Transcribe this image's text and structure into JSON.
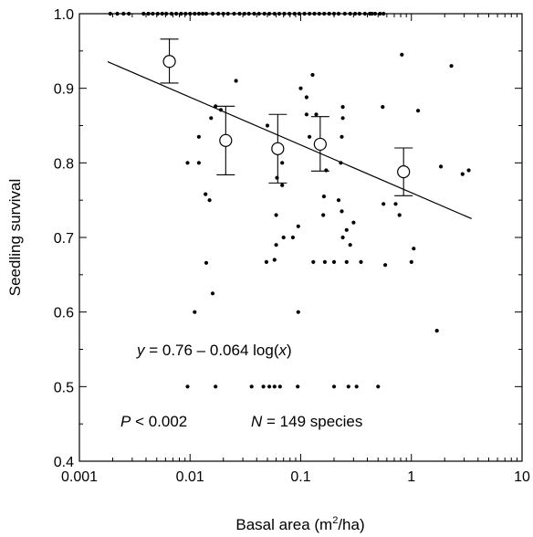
{
  "chart_data": {
    "type": "scatter",
    "xlabel": "Basal area (m",
    "xlabel_sup": "2",
    "xlabel_end": "/ha)",
    "ylabel": "Seedling survival",
    "xscale": "log",
    "xlim": [
      0.001,
      10
    ],
    "ylim": [
      0.4,
      1.0
    ],
    "x_tick_labels": [
      "0.001",
      "0.01",
      "0.1",
      "1",
      "10"
    ],
    "x_ticks": [
      0.001,
      0.01,
      0.1,
      1,
      10
    ],
    "y_tick_labels": [
      "0.4",
      "0.5",
      "0.6",
      "0.7",
      "0.8",
      "0.9",
      "1.0"
    ],
    "y_ticks": [
      0.4,
      0.5,
      0.6,
      0.7,
      0.8,
      0.9,
      1.0
    ],
    "grid": false,
    "equation": {
      "y": "y",
      "eq": " = 0.76 – 0.064 log(",
      "x": "x",
      "close": ")"
    },
    "stats": {
      "p_label": "P",
      "p_value": " < 0.002",
      "n_label": "N",
      "n_value": " = 149 species"
    },
    "regression": {
      "intercept": 0.76,
      "slope": -0.064,
      "x_range": [
        0.0018,
        3.5
      ]
    },
    "binned_means": [
      {
        "x": 0.0065,
        "y": 0.936,
        "low": 0.907,
        "high": 0.966
      },
      {
        "x": 0.021,
        "y": 0.83,
        "low": 0.784,
        "high": 0.876
      },
      {
        "x": 0.062,
        "y": 0.819,
        "low": 0.773,
        "high": 0.865
      },
      {
        "x": 0.15,
        "y": 0.825,
        "low": 0.789,
        "high": 0.862
      },
      {
        "x": 0.85,
        "y": 0.788,
        "low": 0.756,
        "high": 0.82
      }
    ],
    "points": [
      [
        0.0019,
        1.0
      ],
      [
        0.0022,
        1.0
      ],
      [
        0.0025,
        1.0
      ],
      [
        0.0028,
        1.0
      ],
      [
        0.0038,
        1.0
      ],
      [
        0.0042,
        1.0
      ],
      [
        0.0046,
        1.0
      ],
      [
        0.0051,
        1.0
      ],
      [
        0.0056,
        1.0
      ],
      [
        0.0061,
        1.0
      ],
      [
        0.0068,
        1.0
      ],
      [
        0.0075,
        1.0
      ],
      [
        0.0083,
        1.0
      ],
      [
        0.0091,
        1.0
      ],
      [
        0.01,
        1.0
      ],
      [
        0.011,
        1.0
      ],
      [
        0.012,
        1.0
      ],
      [
        0.013,
        1.0
      ],
      [
        0.014,
        1.0
      ],
      [
        0.016,
        1.0
      ],
      [
        0.018,
        1.0
      ],
      [
        0.02,
        1.0
      ],
      [
        0.022,
        1.0
      ],
      [
        0.025,
        1.0
      ],
      [
        0.028,
        1.0
      ],
      [
        0.031,
        1.0
      ],
      [
        0.034,
        1.0
      ],
      [
        0.038,
        1.0
      ],
      [
        0.042,
        1.0
      ],
      [
        0.047,
        1.0
      ],
      [
        0.052,
        1.0
      ],
      [
        0.058,
        1.0
      ],
      [
        0.064,
        1.0
      ],
      [
        0.071,
        1.0
      ],
      [
        0.079,
        1.0
      ],
      [
        0.088,
        1.0
      ],
      [
        0.097,
        1.0
      ],
      [
        0.108,
        1.0
      ],
      [
        0.12,
        1.0
      ],
      [
        0.133,
        1.0
      ],
      [
        0.147,
        1.0
      ],
      [
        0.163,
        1.0
      ],
      [
        0.181,
        1.0
      ],
      [
        0.2,
        1.0
      ],
      [
        0.22,
        1.0
      ],
      [
        0.25,
        1.0
      ],
      [
        0.28,
        1.0
      ],
      [
        0.31,
        1.0
      ],
      [
        0.34,
        1.0
      ],
      [
        0.38,
        1.0
      ],
      [
        0.42,
        1.0
      ],
      [
        0.44,
        1.0
      ],
      [
        0.47,
        1.0
      ],
      [
        0.52,
        1.0
      ],
      [
        0.56,
        1.0
      ],
      [
        0.026,
        0.91
      ],
      [
        0.017,
        0.876
      ],
      [
        0.019,
        0.871
      ],
      [
        0.0155,
        0.86
      ],
      [
        0.012,
        0.835
      ],
      [
        0.012,
        0.8
      ],
      [
        0.0095,
        0.8
      ],
      [
        0.0138,
        0.758
      ],
      [
        0.015,
        0.75
      ],
      [
        0.014,
        0.666
      ],
      [
        0.016,
        0.625
      ],
      [
        0.011,
        0.6
      ],
      [
        0.0095,
        0.5
      ],
      [
        0.017,
        0.5
      ],
      [
        0.036,
        0.5
      ],
      [
        0.046,
        0.5
      ],
      [
        0.052,
        0.5
      ],
      [
        0.058,
        0.5
      ],
      [
        0.065,
        0.5
      ],
      [
        0.094,
        0.5
      ],
      [
        0.2,
        0.5
      ],
      [
        0.27,
        0.5
      ],
      [
        0.32,
        0.5
      ],
      [
        0.5,
        0.5
      ],
      [
        0.05,
        0.85
      ],
      [
        0.068,
        0.8
      ],
      [
        0.061,
        0.78
      ],
      [
        0.068,
        0.77
      ],
      [
        0.06,
        0.73
      ],
      [
        0.06,
        0.69
      ],
      [
        0.058,
        0.67
      ],
      [
        0.049,
        0.667
      ],
      [
        0.07,
        0.7
      ],
      [
        0.085,
        0.7
      ],
      [
        0.095,
        0.715
      ],
      [
        0.095,
        0.6
      ],
      [
        0.1,
        0.9
      ],
      [
        0.128,
        0.918
      ],
      [
        0.113,
        0.888
      ],
      [
        0.113,
        0.865
      ],
      [
        0.12,
        0.835
      ],
      [
        0.17,
        0.79
      ],
      [
        0.162,
        0.755
      ],
      [
        0.16,
        0.73
      ],
      [
        0.13,
        0.667
      ],
      [
        0.2,
        0.667
      ],
      [
        0.165,
        0.667
      ],
      [
        0.138,
        0.865
      ],
      [
        0.24,
        0.875
      ],
      [
        0.24,
        0.86
      ],
      [
        0.235,
        0.835
      ],
      [
        0.23,
        0.8
      ],
      [
        0.22,
        0.75
      ],
      [
        0.235,
        0.735
      ],
      [
        0.26,
        0.71
      ],
      [
        0.24,
        0.7
      ],
      [
        0.3,
        0.72
      ],
      [
        0.28,
        0.69
      ],
      [
        0.26,
        0.667
      ],
      [
        0.35,
        0.667
      ],
      [
        0.55,
        0.875
      ],
      [
        0.56,
        0.745
      ],
      [
        0.58,
        0.663
      ],
      [
        0.82,
        0.945
      ],
      [
        0.72,
        0.745
      ],
      [
        0.78,
        0.73
      ],
      [
        1.05,
        0.685
      ],
      [
        1.0,
        0.667
      ],
      [
        1.15,
        0.87
      ],
      [
        1.7,
        0.575
      ],
      [
        1.85,
        0.795
      ],
      [
        2.3,
        0.93
      ],
      [
        2.9,
        0.785
      ],
      [
        3.3,
        0.79
      ]
    ]
  }
}
